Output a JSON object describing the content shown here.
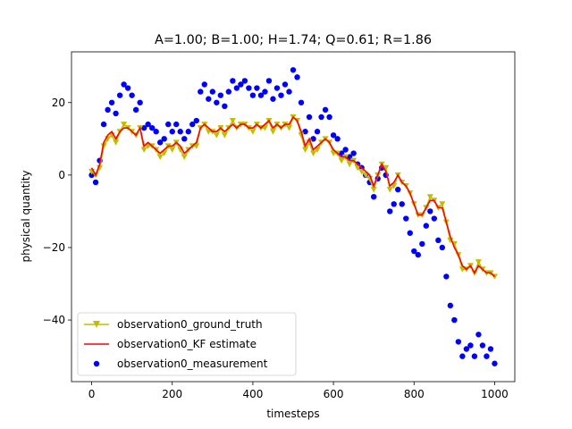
{
  "chart_data": {
    "type": "scatter",
    "title": "A=1.00; B=1.00; H=1.74; Q=0.61; R=1.86",
    "xlabel": "timesteps",
    "ylabel": "physical quantity",
    "xlim": [
      -50,
      1050
    ],
    "ylim": [
      -57,
      34
    ],
    "xticks": [
      0,
      200,
      400,
      600,
      800,
      1000
    ],
    "yticks": [
      -40,
      -20,
      0,
      20
    ],
    "xtick_labels": [
      "0",
      "200",
      "400",
      "600",
      "800",
      "1000"
    ],
    "ytick_labels": [
      "−40",
      "−20",
      "0",
      "20"
    ],
    "grid": false,
    "legend_position": "lower-left",
    "sample_step": 10,
    "series": [
      {
        "name": "observation0_ground_truth",
        "kind": "line-triangle-markers",
        "color": "#bfbf00",
        "x": [
          0,
          10,
          20,
          30,
          40,
          50,
          60,
          70,
          80,
          90,
          100,
          110,
          120,
          130,
          140,
          150,
          160,
          170,
          180,
          190,
          200,
          210,
          220,
          230,
          240,
          250,
          260,
          270,
          280,
          290,
          300,
          310,
          320,
          330,
          340,
          350,
          360,
          370,
          380,
          390,
          400,
          410,
          420,
          430,
          440,
          450,
          460,
          470,
          480,
          490,
          500,
          510,
          520,
          530,
          540,
          550,
          560,
          570,
          580,
          590,
          600,
          610,
          620,
          630,
          640,
          650,
          660,
          670,
          680,
          690,
          700,
          710,
          720,
          730,
          740,
          750,
          760,
          770,
          780,
          790,
          800,
          810,
          820,
          830,
          840,
          850,
          860,
          870,
          880,
          890,
          900,
          910,
          920,
          930,
          940,
          950,
          960,
          970,
          980,
          990,
          1000
        ],
        "y": [
          1,
          0,
          2,
          8,
          10,
          11,
          9,
          12,
          14,
          13,
          12,
          11,
          13,
          7,
          8,
          8,
          7,
          5,
          6,
          8,
          7,
          9,
          7,
          5,
          7,
          8,
          8,
          13,
          14,
          12,
          12,
          11,
          13,
          11,
          13,
          15,
          13,
          14,
          14,
          13,
          12,
          14,
          13,
          13,
          15,
          12,
          14,
          13,
          14,
          13,
          16,
          15,
          11,
          7,
          9,
          6,
          7,
          9,
          10,
          9,
          6,
          6,
          4,
          5,
          3,
          4,
          2,
          1,
          0,
          -1,
          -4,
          0,
          3,
          2,
          -4,
          -3,
          0,
          -2,
          -3,
          -5,
          -8,
          -11,
          -11,
          -9,
          -6,
          -7,
          -9,
          -8,
          -13,
          -18,
          -19,
          -22,
          -26,
          -26,
          -25,
          -27,
          -24,
          -26,
          -27,
          -27,
          -28
        ]
      },
      {
        "name": "observation0_KF estimate",
        "kind": "line",
        "color": "#ff0000",
        "x": [
          0,
          10,
          20,
          30,
          40,
          50,
          60,
          70,
          80,
          90,
          100,
          110,
          120,
          130,
          140,
          150,
          160,
          170,
          180,
          190,
          200,
          210,
          220,
          230,
          240,
          250,
          260,
          270,
          280,
          290,
          300,
          310,
          320,
          330,
          340,
          350,
          360,
          370,
          380,
          390,
          400,
          410,
          420,
          430,
          440,
          450,
          460,
          470,
          480,
          490,
          500,
          510,
          520,
          530,
          540,
          550,
          560,
          570,
          580,
          590,
          600,
          610,
          620,
          630,
          640,
          650,
          660,
          670,
          680,
          690,
          700,
          710,
          720,
          730,
          740,
          750,
          760,
          770,
          780,
          790,
          800,
          810,
          820,
          830,
          840,
          850,
          860,
          870,
          880,
          890,
          900,
          910,
          920,
          930,
          940,
          950,
          960,
          970,
          980,
          990,
          1000
        ],
        "y": [
          2,
          0,
          3,
          9,
          11,
          12,
          10,
          12,
          13,
          13,
          12,
          11,
          13,
          8,
          9,
          8,
          7,
          6,
          7,
          8,
          8,
          9,
          8,
          6,
          7,
          8,
          9,
          13,
          14,
          13,
          12,
          12,
          13,
          12,
          13,
          14,
          13,
          14,
          14,
          13,
          13,
          14,
          13,
          14,
          15,
          13,
          14,
          13,
          14,
          14,
          16,
          15,
          12,
          8,
          10,
          7,
          8,
          9,
          10,
          9,
          7,
          6,
          5,
          5,
          4,
          4,
          3,
          2,
          1,
          0,
          -3,
          0,
          3,
          1,
          -3,
          -2,
          0,
          -2,
          -3,
          -5,
          -8,
          -11,
          -11,
          -9,
          -7,
          -7,
          -9,
          -9,
          -13,
          -17,
          -20,
          -22,
          -25,
          -26,
          -25,
          -27,
          -25,
          -26,
          -27,
          -27,
          -28
        ]
      },
      {
        "name": "observation0_measurement",
        "kind": "scatter",
        "color": "#0000ff",
        "x": [
          0,
          10,
          20,
          30,
          40,
          50,
          60,
          70,
          80,
          90,
          100,
          110,
          120,
          130,
          140,
          150,
          160,
          170,
          180,
          190,
          200,
          210,
          220,
          230,
          240,
          250,
          260,
          270,
          280,
          290,
          300,
          310,
          320,
          330,
          340,
          350,
          360,
          370,
          380,
          390,
          400,
          410,
          420,
          430,
          440,
          450,
          460,
          470,
          480,
          490,
          500,
          510,
          520,
          530,
          540,
          550,
          560,
          570,
          580,
          590,
          600,
          610,
          620,
          630,
          640,
          650,
          660,
          670,
          680,
          690,
          700,
          710,
          720,
          730,
          740,
          750,
          760,
          770,
          780,
          790,
          800,
          810,
          820,
          830,
          840,
          850,
          860,
          870,
          880,
          890,
          900,
          910,
          920,
          930,
          940,
          950,
          960,
          970,
          980,
          990,
          1000
        ],
        "y": [
          0,
          -2,
          4,
          14,
          18,
          20,
          17,
          22,
          25,
          24,
          22,
          18,
          20,
          13,
          14,
          13,
          12,
          9,
          10,
          14,
          12,
          14,
          12,
          10,
          12,
          14,
          15,
          23,
          25,
          21,
          23,
          20,
          22,
          19,
          23,
          26,
          24,
          25,
          26,
          24,
          22,
          24,
          22,
          23,
          26,
          21,
          24,
          22,
          25,
          23,
          29,
          27,
          20,
          12,
          16,
          10,
          12,
          16,
          18,
          16,
          11,
          10,
          6,
          7,
          5,
          6,
          3,
          2,
          0,
          -2,
          -6,
          -1,
          2,
          0,
          -10,
          -8,
          -4,
          -8,
          -12,
          -16,
          -21,
          -22,
          -19,
          -14,
          -10,
          -12,
          -18,
          -20,
          -28,
          -36,
          -40,
          -46,
          -50,
          -48,
          -47,
          -50,
          -44,
          -47,
          -50,
          -48,
          -52
        ]
      }
    ]
  }
}
